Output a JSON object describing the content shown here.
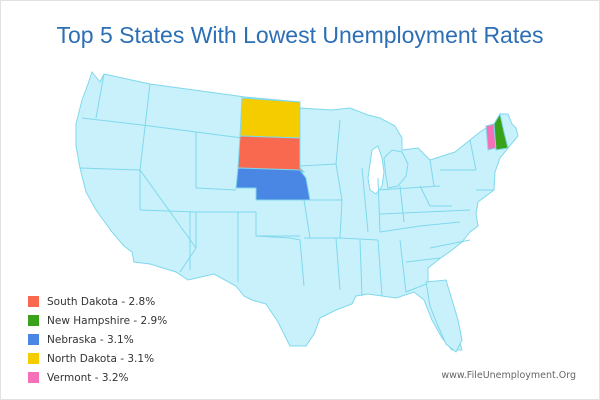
{
  "title": "Top 5 States With Lowest Unemployment Rates",
  "credit": "www.FileUnemployment.Org",
  "colors": {
    "base_state": "#c9f1fb",
    "state_border": "#7fd8ec",
    "title": "#2c6fb5"
  },
  "legend": [
    {
      "state": "South Dakota",
      "label": "South Dakota - 2.8%",
      "rate": 2.8,
      "color": "#f9694f"
    },
    {
      "state": "New Hampshire",
      "label": "New Hampshire - 2.9%",
      "rate": 2.9,
      "color": "#3aa11b"
    },
    {
      "state": "Nebraska",
      "label": "Nebraska - 3.1%",
      "rate": 3.1,
      "color": "#4a86e4"
    },
    {
      "state": "North Dakota",
      "label": "North Dakota - 3.1%",
      "rate": 3.1,
      "color": "#f4cc00"
    },
    {
      "state": "Vermont",
      "label": "Vermont - 3.2%",
      "rate": 3.2,
      "color": "#f570b8"
    }
  ]
}
